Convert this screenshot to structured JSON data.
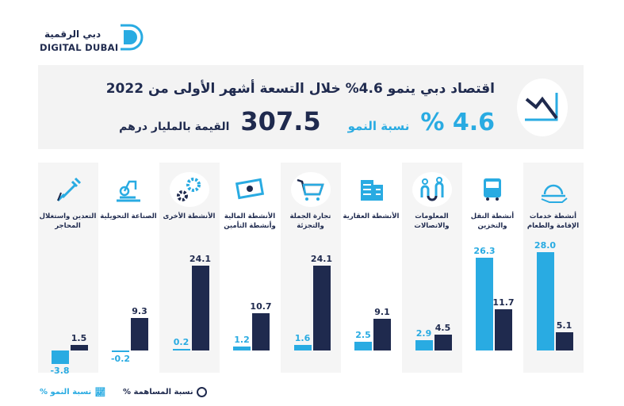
{
  "logo": {
    "arabic": "دبي الرقمية",
    "english": "DIGITAL DUBAI"
  },
  "header": {
    "title": "اقتصاد دبي ينمو 4.6% خلال التسعة أشهر الأولى من 2022",
    "growth_value": "4.6 %",
    "growth_label": "نسبة النمو",
    "value": "307.5",
    "value_label": "القيمة بالمليار درهم",
    "icon": "declining-chart-icon"
  },
  "colors": {
    "growth": "#29abe2",
    "contribution": "#1f2a4e"
  },
  "legend": {
    "contribution": "نسبة المساهمة %",
    "growth": "نسبة النمو %"
  },
  "chart_data": {
    "type": "bar",
    "categories": [
      "أنشطة خدمات الإقامة والطعام",
      "أنشطة النقل والتخزين",
      "المعلومات والاتصالات",
      "الأنشطة العقارية",
      "تجارة الجملة والتجزئة",
      "الأنشطة المالية وأنشطة التأمين",
      "الأنشطة الأخرى",
      "الصناعة التحويلية",
      "التعدين واستغلال المحاجر"
    ],
    "icons": [
      "food-cloche-icon",
      "bus-icon",
      "people-network-icon",
      "building-icon",
      "shopping-cart-icon",
      "money-icon",
      "gears-icon",
      "robot-arm-icon",
      "drill-icon"
    ],
    "series": [
      {
        "name": "نسبة النمو %",
        "values": [
          28.0,
          26.3,
          2.9,
          2.5,
          1.6,
          1.2,
          0.2,
          -0.2,
          -3.8
        ]
      },
      {
        "name": "نسبة المساهمة %",
        "values": [
          5.1,
          11.7,
          4.5,
          9.1,
          24.1,
          10.7,
          24.1,
          9.3,
          1.5
        ]
      }
    ]
  }
}
